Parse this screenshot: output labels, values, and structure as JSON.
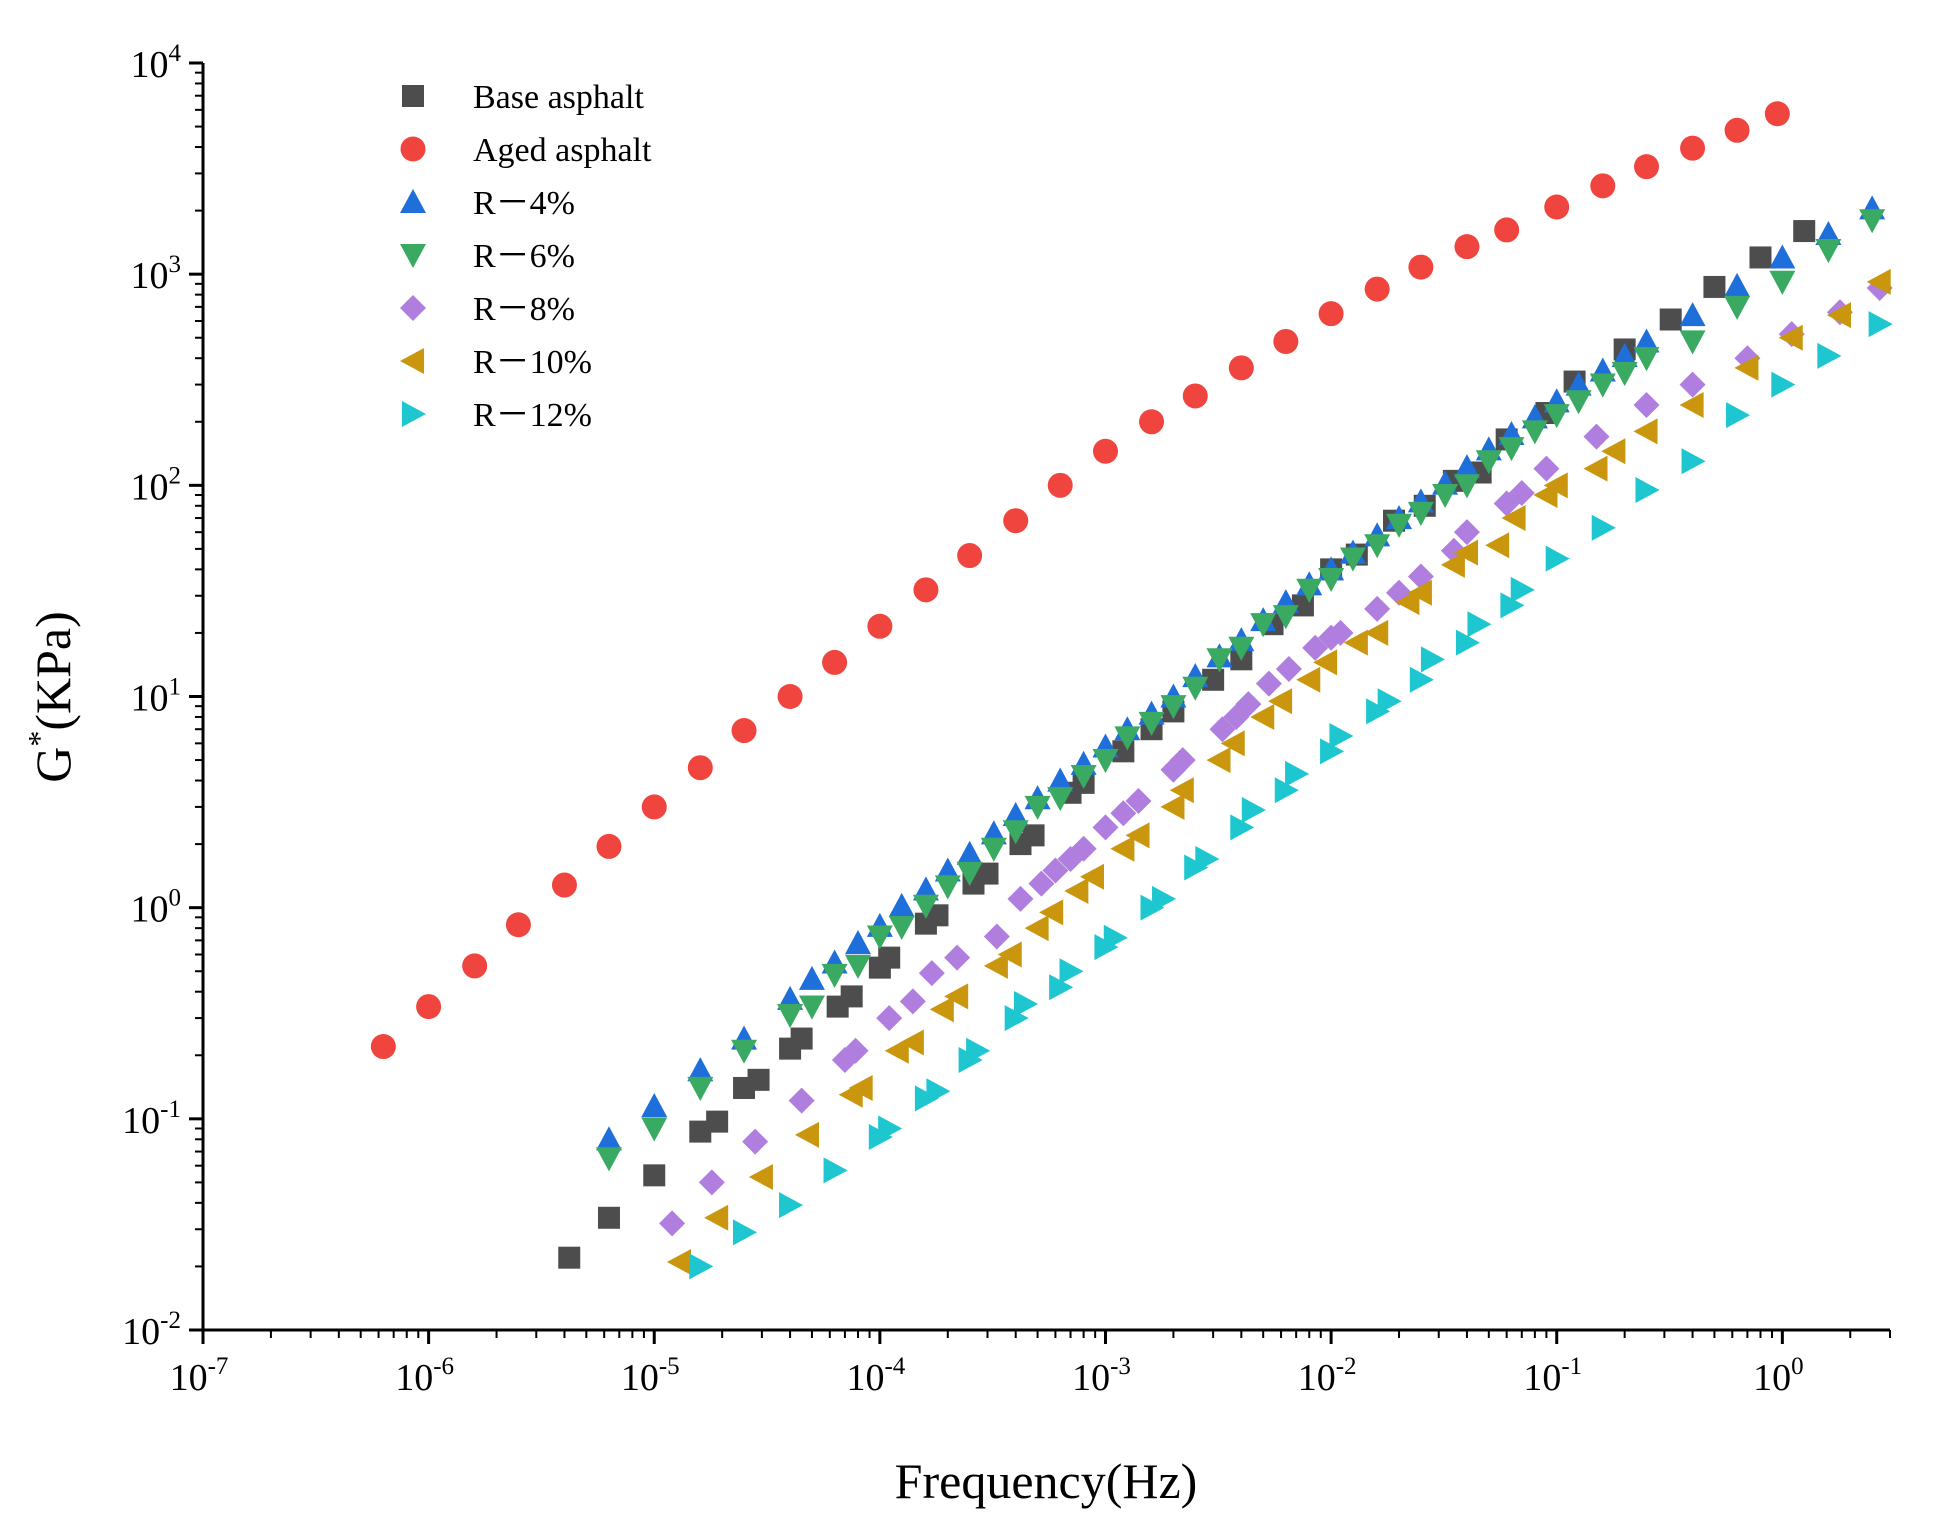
{
  "chart_data": {
    "type": "scatter",
    "title": "",
    "xlabel": "Frequency(Hz)",
    "ylabel_base": "G",
    "ylabel_sup": "*",
    "ylabel_unit": "(KPa)",
    "xscale": "log",
    "yscale": "log",
    "xlim": [
      1e-07,
      3
    ],
    "ylim": [
      0.01,
      10000
    ],
    "x_ticks": [
      {
        "base": "10",
        "exp": "-7"
      },
      {
        "base": "10",
        "exp": "-6"
      },
      {
        "base": "10",
        "exp": "-5"
      },
      {
        "base": "10",
        "exp": "-4"
      },
      {
        "base": "10",
        "exp": "-3"
      },
      {
        "base": "10",
        "exp": "-2"
      },
      {
        "base": "10",
        "exp": "-1"
      },
      {
        "base": "10",
        "exp": "0"
      }
    ],
    "y_ticks": [
      {
        "base": "10",
        "exp": "-2"
      },
      {
        "base": "10",
        "exp": "-1"
      },
      {
        "base": "10",
        "exp": "0"
      },
      {
        "base": "10",
        "exp": "1"
      },
      {
        "base": "10",
        "exp": "2"
      },
      {
        "base": "10",
        "exp": "3"
      },
      {
        "base": "10",
        "exp": "4"
      }
    ],
    "legend_position": "top-left",
    "series": [
      {
        "name": "Base asphalt",
        "marker": "square",
        "color": "#4d4d4d",
        "x": [
          4.2e-06,
          6.3e-06,
          1e-05,
          1.6e-05,
          1.9e-05,
          2.5e-05,
          2.9e-05,
          4e-05,
          4.5e-05,
          6.5e-05,
          7.5e-05,
          0.0001,
          0.00011,
          0.00016,
          0.00018,
          0.00026,
          0.0003,
          0.00042,
          0.00048,
          0.0007,
          0.0008,
          0.0012,
          0.0016,
          0.002,
          0.003,
          0.004,
          0.0055,
          0.0075,
          0.01,
          0.013,
          0.019,
          0.026,
          0.035,
          0.046,
          0.06,
          0.09,
          0.12,
          0.2,
          0.32,
          0.5,
          0.8,
          1.25
        ],
        "y": [
          0.022,
          0.034,
          0.054,
          0.087,
          0.097,
          0.14,
          0.153,
          0.215,
          0.24,
          0.34,
          0.38,
          0.52,
          0.58,
          0.84,
          0.92,
          1.3,
          1.45,
          2.0,
          2.2,
          3.5,
          3.9,
          5.5,
          7.0,
          8.5,
          12.0,
          15.0,
          22.0,
          27.0,
          40.0,
          47.0,
          68.0,
          80.0,
          105.0,
          115.0,
          165.0,
          220.0,
          310.0,
          440.0,
          610.0,
          870.0,
          1200.0,
          1600.0
        ]
      },
      {
        "name": "Aged asphalt",
        "marker": "circle",
        "color": "#f0443e",
        "x": [
          6.3e-07,
          1e-06,
          1.6e-06,
          2.5e-06,
          4e-06,
          6.3e-06,
          1e-05,
          1.6e-05,
          2.5e-05,
          4e-05,
          6.3e-05,
          0.0001,
          0.00016,
          0.00025,
          0.0004,
          0.00063,
          0.001,
          0.0016,
          0.0025,
          0.004,
          0.0063,
          0.01,
          0.016,
          0.025,
          0.04,
          0.06,
          0.1,
          0.16,
          0.25,
          0.4,
          0.63,
          0.95
        ],
        "y": [
          0.22,
          0.34,
          0.53,
          0.83,
          1.28,
          1.95,
          3.0,
          4.6,
          6.9,
          10.0,
          14.5,
          21.5,
          32.0,
          46.5,
          68.0,
          100.0,
          145.0,
          200.0,
          265.0,
          360.0,
          480.0,
          650.0,
          850.0,
          1080.0,
          1350.0,
          1620.0,
          2080.0,
          2620.0,
          3230.0,
          3950.0,
          4800.0,
          5750.0
        ]
      },
      {
        "name": "R－4%",
        "marker": "triangle-up",
        "color": "#1f6fdb",
        "x": [
          6.3e-06,
          1e-05,
          1.6e-05,
          2.5e-05,
          4e-05,
          5e-05,
          6.3e-05,
          8e-05,
          0.0001,
          0.000125,
          0.00016,
          0.0002,
          0.00025,
          0.00032,
          0.0004,
          0.0005,
          0.00063,
          0.0008,
          0.001,
          0.00125,
          0.0016,
          0.002,
          0.0025,
          0.0032,
          0.004,
          0.005,
          0.0063,
          0.008,
          0.01,
          0.0125,
          0.016,
          0.02,
          0.025,
          0.032,
          0.04,
          0.05,
          0.063,
          0.08,
          0.1,
          0.125,
          0.16,
          0.2,
          0.25,
          0.4,
          0.63,
          1.0,
          1.6,
          2.5
        ],
        "y": [
          0.08,
          0.115,
          0.17,
          0.24,
          0.37,
          0.46,
          0.55,
          0.68,
          0.82,
          1.02,
          1.22,
          1.5,
          1.8,
          2.25,
          2.75,
          3.3,
          4.0,
          4.8,
          5.8,
          7.0,
          8.3,
          10.0,
          12.5,
          15.5,
          18.5,
          23.0,
          28.0,
          34.0,
          40.0,
          48.0,
          58.0,
          70.0,
          84.0,
          102.0,
          122.0,
          148.0,
          175.0,
          210.0,
          250.0,
          300.0,
          350.0,
          410.0,
          480.0,
          640.0,
          880.0,
          1200.0,
          1550.0,
          2050.0
        ]
      },
      {
        "name": "R－6%",
        "marker": "triangle-down",
        "color": "#3aaa62",
        "x": [
          6.3e-06,
          1e-05,
          1.6e-05,
          2.5e-05,
          4e-05,
          5e-05,
          6.3e-05,
          8e-05,
          0.0001,
          0.000125,
          0.00016,
          0.0002,
          0.00025,
          0.00032,
          0.0004,
          0.0005,
          0.00063,
          0.0008,
          0.001,
          0.00125,
          0.0016,
          0.002,
          0.0025,
          0.0032,
          0.004,
          0.005,
          0.0063,
          0.008,
          0.01,
          0.0125,
          0.016,
          0.02,
          0.025,
          0.032,
          0.04,
          0.05,
          0.063,
          0.08,
          0.1,
          0.125,
          0.16,
          0.2,
          0.25,
          0.4,
          0.63,
          1.0,
          1.6,
          2.5
        ],
        "y": [
          0.065,
          0.09,
          0.14,
          0.21,
          0.31,
          0.34,
          0.48,
          0.53,
          0.73,
          0.81,
          1.02,
          1.26,
          1.46,
          1.9,
          2.3,
          3.0,
          3.3,
          4.2,
          5.0,
          6.4,
          7.5,
          9.0,
          11.0,
          15.0,
          17.0,
          22.0,
          24.0,
          32.0,
          36.0,
          45.0,
          52.0,
          65.0,
          74.0,
          90.0,
          100.0,
          130.0,
          150.0,
          180.0,
          215.0,
          250.0,
          300.0,
          340.0,
          400.0,
          480.0,
          700.0,
          920.0,
          1300.0,
          1800.0
        ]
      },
      {
        "name": "R－8%",
        "marker": "diamond",
        "color": "#b07ede",
        "x": [
          1.2e-05,
          1.8e-05,
          2.8e-05,
          4.5e-05,
          7e-05,
          7.8e-05,
          0.00011,
          0.00014,
          0.00017,
          0.00022,
          0.00033,
          0.00042,
          0.00052,
          0.0006,
          0.0007,
          0.0008,
          0.001,
          0.0012,
          0.0014,
          0.002,
          0.0022,
          0.0033,
          0.0038,
          0.0043,
          0.0053,
          0.0065,
          0.0085,
          0.01,
          0.011,
          0.016,
          0.02,
          0.025,
          0.035,
          0.04,
          0.06,
          0.07,
          0.09,
          0.15,
          0.25,
          0.4,
          0.7,
          1.1,
          1.8,
          2.7
        ],
        "y": [
          0.032,
          0.05,
          0.078,
          0.122,
          0.19,
          0.21,
          0.3,
          0.36,
          0.49,
          0.58,
          0.73,
          1.1,
          1.3,
          1.5,
          1.7,
          1.9,
          2.4,
          2.8,
          3.2,
          4.5,
          5.0,
          7.0,
          8.0,
          9.2,
          11.5,
          13.5,
          17.0,
          19.0,
          20.0,
          26.0,
          31.0,
          37.0,
          49.0,
          60.0,
          82.0,
          92.0,
          120.0,
          170.0,
          240.0,
          300.0,
          400.0,
          520.0,
          660.0,
          860.0
        ]
      },
      {
        "name": "R－10%",
        "marker": "triangle-left",
        "color": "#c9960e",
        "x": [
          1.3e-05,
          1.9e-05,
          3e-05,
          4.8e-05,
          7.5e-05,
          8.3e-05,
          0.00012,
          0.00014,
          0.00019,
          0.00022,
          0.00033,
          0.00038,
          0.0005,
          0.00058,
          0.00075,
          0.00088,
          0.0012,
          0.0014,
          0.002,
          0.0022,
          0.0032,
          0.0037,
          0.005,
          0.006,
          0.008,
          0.0095,
          0.013,
          0.016,
          0.022,
          0.025,
          0.035,
          0.04,
          0.055,
          0.065,
          0.09,
          0.1,
          0.15,
          0.18,
          0.25,
          0.4,
          0.7,
          1.1,
          1.8,
          2.7
        ],
        "y": [
          0.021,
          0.034,
          0.053,
          0.084,
          0.13,
          0.14,
          0.21,
          0.23,
          0.33,
          0.38,
          0.53,
          0.6,
          0.8,
          0.95,
          1.2,
          1.4,
          1.9,
          2.2,
          3.0,
          3.6,
          5.0,
          6.0,
          8.0,
          9.5,
          12.0,
          14.5,
          18.0,
          20.0,
          28.0,
          31.0,
          42.0,
          48.0,
          52.0,
          70.0,
          90.0,
          100.0,
          120.0,
          145.0,
          180.0,
          240.0,
          360.0,
          500.0,
          640.0,
          920.0
        ]
      },
      {
        "name": "R－12%",
        "marker": "triangle-right",
        "color": "#1ec6d0",
        "x": [
          1.6e-05,
          2.5e-05,
          4e-05,
          6.3e-05,
          0.0001,
          0.00011,
          0.00016,
          0.00018,
          0.00025,
          0.00027,
          0.0004,
          0.00044,
          0.00063,
          0.0007,
          0.001,
          0.0011,
          0.0016,
          0.0018,
          0.0025,
          0.0028,
          0.004,
          0.0045,
          0.0063,
          0.007,
          0.01,
          0.011,
          0.016,
          0.018,
          0.025,
          0.028,
          0.04,
          0.045,
          0.063,
          0.07,
          0.1,
          0.16,
          0.25,
          0.4,
          0.63,
          1.0,
          1.6,
          2.7
        ],
        "y": [
          0.02,
          0.029,
          0.039,
          0.057,
          0.082,
          0.09,
          0.125,
          0.135,
          0.19,
          0.21,
          0.3,
          0.35,
          0.42,
          0.5,
          0.65,
          0.72,
          1.0,
          1.1,
          1.55,
          1.7,
          2.4,
          2.9,
          3.6,
          4.3,
          5.5,
          6.5,
          8.5,
          9.5,
          12.0,
          15.0,
          18.0,
          22.0,
          27.0,
          32.0,
          45.0,
          63.0,
          95.0,
          130.0,
          215.0,
          300.0,
          410.0,
          580.0
        ]
      }
    ]
  }
}
